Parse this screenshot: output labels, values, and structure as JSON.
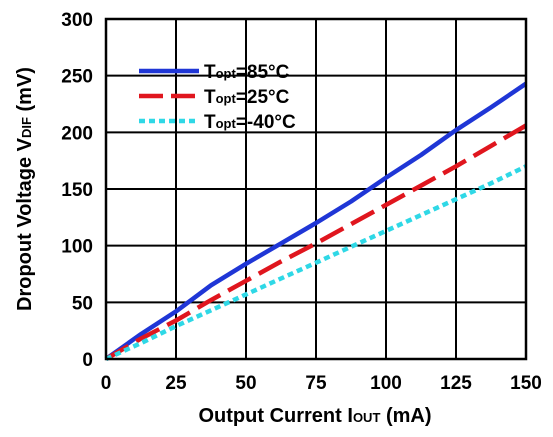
{
  "chart_data": {
    "type": "line",
    "title": "",
    "xlabel": {
      "main": "Output Current I",
      "sub": "OUT",
      "unit": " (mA)"
    },
    "ylabel": {
      "main": "Dropout Voltage V",
      "sub": "DIF",
      "unit": " (mV)"
    },
    "xlim": [
      0,
      150
    ],
    "ylim": [
      0,
      300
    ],
    "xticks": [
      0,
      25,
      50,
      75,
      100,
      125,
      150
    ],
    "yticks": [
      0,
      50,
      100,
      150,
      200,
      250,
      300
    ],
    "grid": true,
    "legend_position": "top-left",
    "series": [
      {
        "label_main": "T",
        "label_sub": "opt",
        "label_rest": "=85°C",
        "color": "#1f36d6",
        "style": "solid",
        "x": [
          0,
          12.5,
          25,
          37.5,
          50,
          62.5,
          75,
          87.5,
          100,
          112.5,
          125,
          137.5,
          150
        ],
        "y": [
          0,
          22,
          42,
          65,
          84,
          102,
          120,
          139,
          160,
          180,
          202,
          222,
          243
        ]
      },
      {
        "label_main": "T",
        "label_sub": "opt",
        "label_rest": "=25°C",
        "color": "#e0161e",
        "style": "dashed",
        "x": [
          0,
          12.5,
          25,
          37.5,
          50,
          62.5,
          75,
          87.5,
          100,
          112.5,
          125,
          137.5,
          150
        ],
        "y": [
          0,
          18,
          34,
          52,
          69,
          86,
          102,
          119,
          136,
          153,
          170,
          188,
          206
        ]
      },
      {
        "label_main": "T",
        "label_sub": "opt",
        "label_rest": "=-40°C",
        "color": "#2fd8e6",
        "style": "dotted",
        "x": [
          0,
          12.5,
          25,
          37.5,
          50,
          62.5,
          75,
          87.5,
          100,
          112.5,
          125,
          137.5,
          150
        ],
        "y": [
          0,
          14,
          29,
          43,
          57,
          71,
          85,
          99,
          113,
          127,
          141,
          155,
          170
        ]
      }
    ]
  }
}
